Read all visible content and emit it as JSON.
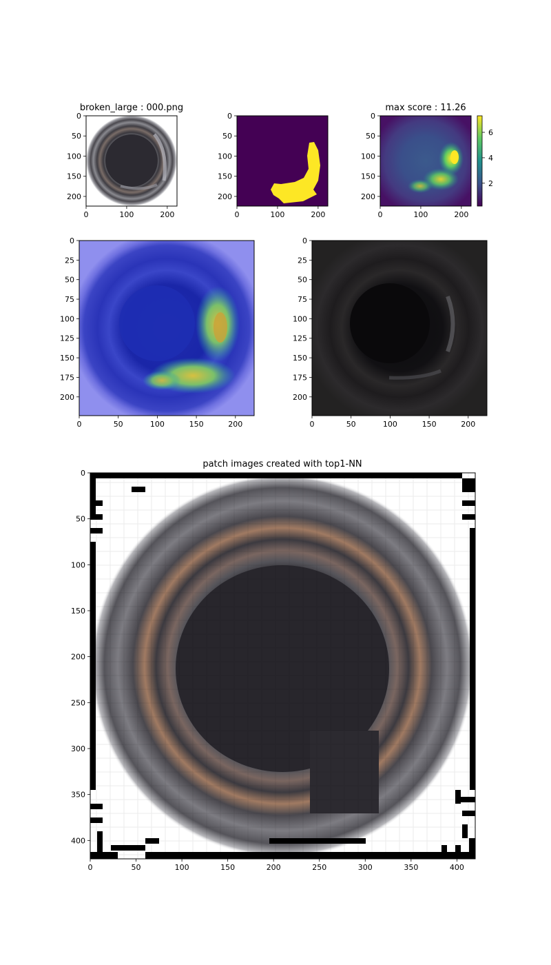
{
  "chart_data": [
    {
      "type": "image",
      "title": "broken_large : 000.png",
      "xlim": [
        0,
        224
      ],
      "ylim": [
        224,
        0
      ],
      "xticks": [
        0,
        100,
        200
      ],
      "yticks": [
        0,
        50,
        100,
        150,
        200
      ],
      "content": "bottle top view"
    },
    {
      "type": "heatmap",
      "title": "",
      "xlim": [
        0,
        224
      ],
      "ylim": [
        224,
        0
      ],
      "xticks": [
        0,
        100,
        200
      ],
      "yticks": [
        0,
        50,
        100,
        150,
        200
      ],
      "colormap": "viridis",
      "content": "binary defect mask",
      "values": [
        0,
        1
      ]
    },
    {
      "type": "heatmap",
      "title": "max score : 11.26",
      "xlim": [
        0,
        224
      ],
      "ylim": [
        224,
        0
      ],
      "xticks": [
        0,
        100,
        200
      ],
      "yticks": [
        0,
        50,
        100,
        150,
        200
      ],
      "colormap": "viridis",
      "colorbar": {
        "ticks": [
          2,
          4,
          6
        ],
        "range": [
          0.2,
          7.3
        ]
      }
    },
    {
      "type": "image",
      "title": "",
      "xlim": [
        0,
        224
      ],
      "ylim": [
        224,
        0
      ],
      "xticks": [
        0,
        50,
        100,
        150,
        200
      ],
      "yticks": [
        0,
        25,
        50,
        75,
        100,
        125,
        150,
        175,
        200
      ],
      "content": "heatmap overlay (jet) on image"
    },
    {
      "type": "image",
      "title": "",
      "xlim": [
        0,
        224
      ],
      "ylim": [
        224,
        0
      ],
      "xticks": [
        0,
        50,
        100,
        150,
        200
      ],
      "yticks": [
        0,
        25,
        50,
        75,
        100,
        125,
        150,
        175,
        200
      ],
      "content": "dimmed image"
    },
    {
      "type": "image",
      "title": "patch images created with top1-NN",
      "xlim": [
        0,
        420
      ],
      "ylim": [
        420,
        0
      ],
      "xticks": [
        0,
        50,
        100,
        150,
        200,
        250,
        300,
        350,
        400
      ],
      "yticks": [
        0,
        50,
        100,
        150,
        200,
        250,
        300,
        350,
        400
      ],
      "content": "patch mosaic"
    }
  ],
  "colors": {
    "viridis_dark": "#440154",
    "viridis_yellow": "#fde725",
    "overlay_blue": "#2a2ad6",
    "overlay_bg": "#8f8fee"
  }
}
